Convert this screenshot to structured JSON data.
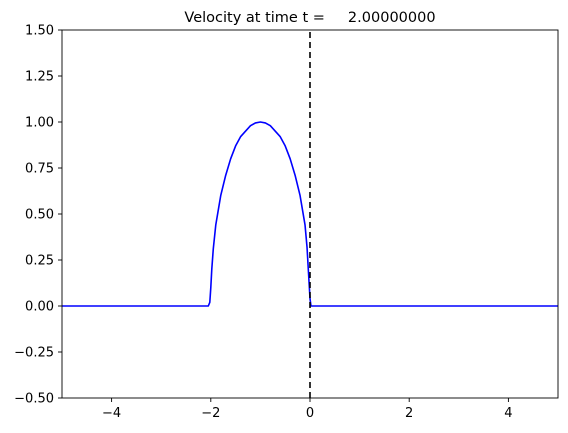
{
  "chart_data": {
    "type": "line",
    "title": "Velocity at time t =     2.00000000",
    "xlabel": "",
    "ylabel": "",
    "xlim": [
      -5,
      5
    ],
    "ylim": [
      -0.5,
      1.5
    ],
    "x_ticks": [
      -4,
      -2,
      0,
      2,
      4
    ],
    "x_tick_labels": [
      "−4",
      "−2",
      "0",
      "2",
      "4"
    ],
    "y_ticks": [
      -0.5,
      -0.25,
      0.0,
      0.25,
      0.5,
      0.75,
      1.0,
      1.25,
      1.5
    ],
    "y_tick_labels": [
      "−0.50",
      "−0.25",
      "0.00",
      "0.25",
      "0.50",
      "0.75",
      "1.00",
      "1.25",
      "1.50"
    ],
    "grid": false,
    "series": [
      {
        "color": "#0000ff",
        "style": "solid",
        "x": [
          -5.0,
          -2.05,
          -2.02,
          -2.0,
          -1.98,
          -1.95,
          -1.9,
          -1.8,
          -1.7,
          -1.6,
          -1.5,
          -1.4,
          -1.3,
          -1.2,
          -1.1,
          -1.0,
          -0.9,
          -0.8,
          -0.7,
          -0.6,
          -0.5,
          -0.4,
          -0.3,
          -0.2,
          -0.1,
          -0.06,
          -0.03,
          0.0,
          0.02,
          0.05,
          5.0
        ],
        "y": [
          0.0,
          0.0,
          0.02,
          0.1,
          0.2,
          0.31,
          0.44,
          0.6,
          0.71,
          0.8,
          0.87,
          0.92,
          0.95,
          0.98,
          0.995,
          1.0,
          0.995,
          0.98,
          0.95,
          0.92,
          0.87,
          0.8,
          0.71,
          0.6,
          0.44,
          0.32,
          0.18,
          0.04,
          0.0,
          0.0,
          0.0
        ]
      },
      {
        "color": "#000000",
        "style": "dashed",
        "x": [
          0.0,
          0.0
        ],
        "y": [
          -0.5,
          1.5
        ]
      }
    ]
  }
}
